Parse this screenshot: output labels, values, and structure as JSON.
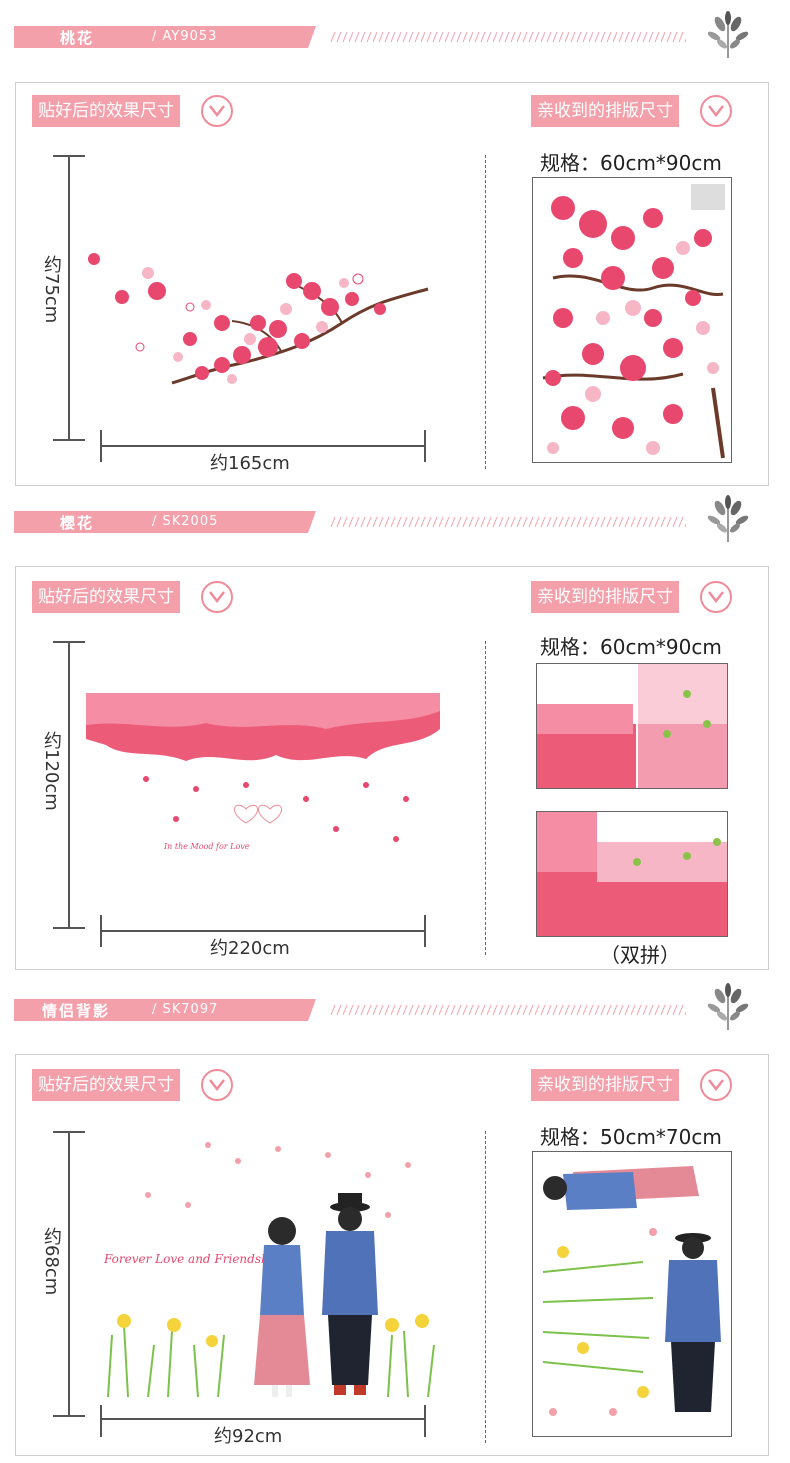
{
  "colors": {
    "accent": "#f4a0ab",
    "accent_dark": "#f08c99",
    "text": "#333333",
    "border": "#cfcfcf"
  },
  "labels": {
    "after_paste": "贴好后的效果尺寸",
    "received_layout": "亲收到的排版尺寸"
  },
  "sections": [
    {
      "title": "桃花",
      "code": "/ AY9053",
      "height_label": "约75cm",
      "width_label": "约165cm",
      "spec": "规格：60cm*90cm",
      "icon": "chevron-down-icon"
    },
    {
      "title": "樱花",
      "code": "/ SK2005",
      "height_label": "约120cm",
      "width_label": "约220cm",
      "spec": "规格：60cm*90cm",
      "note": "（双拼）",
      "inline_text": "In the Mood for Love",
      "icon": "chevron-down-icon"
    },
    {
      "title": "情侣背影",
      "code": "/ SK7097",
      "height_label": "约68cm",
      "width_label": "约92cm",
      "spec": "规格：50cm*70cm",
      "inline_text": "Forever Love and Friendship",
      "icon": "chevron-down-icon"
    }
  ]
}
